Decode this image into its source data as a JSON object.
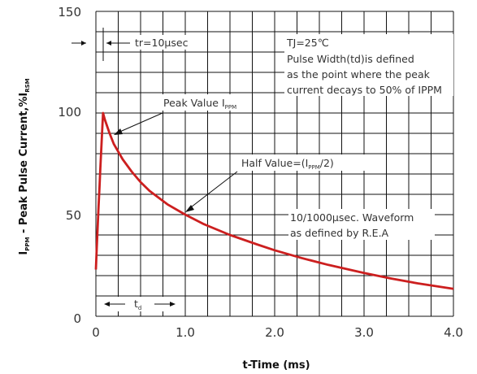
{
  "chart_data": {
    "type": "line",
    "xlabel": "t-Time (ms)",
    "ylabel": {
      "main": "I",
      "sub1": "PPM",
      "mid": " - Peak Pulse Current,%I",
      "sub2": "RSM"
    },
    "xlim": [
      0,
      4.0
    ],
    "ylim": [
      0,
      150
    ],
    "x_ticks": [
      "0",
      "1.0",
      "2.0",
      "3.0",
      "4.0"
    ],
    "y_ticks": [
      "0",
      "50",
      "100",
      "150"
    ],
    "grid": true,
    "colors": {
      "curve": "#cc1f1f",
      "grid": "#111111",
      "text": "#333333"
    },
    "series": [
      {
        "x": [
          0,
          0.01,
          0.02,
          0.03,
          0.04,
          0.05,
          0.06,
          0.07,
          0.08,
          0.1,
          0.15,
          0.2,
          0.3,
          0.4,
          0.5,
          0.6,
          0.8,
          1.0,
          1.2,
          1.5,
          1.8,
          2.0,
          2.3,
          2.6,
          3.0,
          3.3,
          3.6,
          4.0
        ],
        "y": [
          23,
          34,
          44,
          54,
          63,
          73,
          82,
          91,
          100,
          96.8,
          90.4,
          84.8,
          77.2,
          71.2,
          66.0,
          61.7,
          55.1,
          50.0,
          45.5,
          40.0,
          35.4,
          32.5,
          28.7,
          25.3,
          21.3,
          18.6,
          16.2,
          13.5
        ]
      }
    ],
    "annotations": {
      "rise_time": "tr=10µsec",
      "conditions": [
        "TJ=25℃",
        "Pulse Width(td)is defined",
        "as the point where the peak",
        "current decays to 50% of IPPM"
      ],
      "peak": {
        "main": "Peak Value I",
        "sub": "PPM"
      },
      "half": {
        "main": "Half Value=(I",
        "sub": "PPM",
        "tail": "/2)"
      },
      "waveform": [
        "10/1000µsec. Waveform",
        "as defined by R.E.A"
      ],
      "td": {
        "main": "t",
        "sub": "d"
      }
    }
  }
}
